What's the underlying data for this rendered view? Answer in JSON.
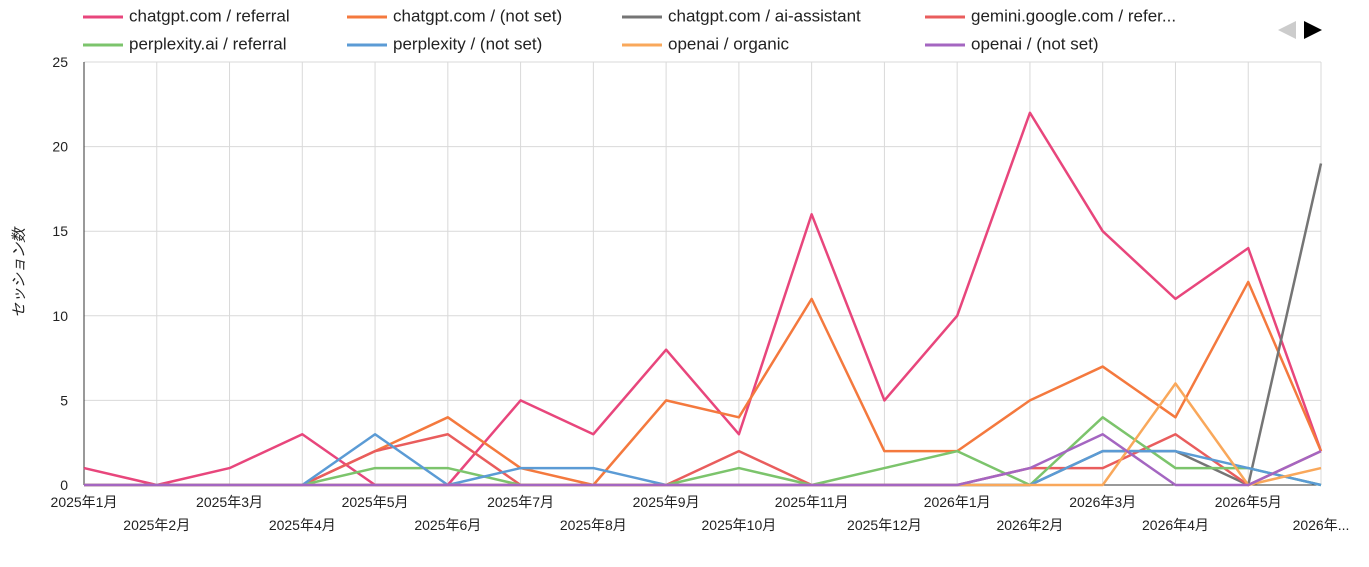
{
  "chart_data": {
    "type": "line",
    "y_label": "セッション数",
    "categories": [
      "2025年1月",
      "2025年2月",
      "2025年3月",
      "2025年4月",
      "2025年5月",
      "2025年6月",
      "2025年7月",
      "2025年8月",
      "2025年9月",
      "2025年10月",
      "2025年11月",
      "2025年12月",
      "2026年1月",
      "2026年2月",
      "2026年3月",
      "2026年4月",
      "2026年5月",
      "2026年..."
    ],
    "ylim": [
      0,
      25
    ],
    "yticks": [
      0,
      5,
      10,
      15,
      20,
      25
    ],
    "grid": true,
    "series": [
      {
        "name": "chatgpt.com / referral",
        "color": "#e8467c",
        "values": [
          1,
          0,
          1,
          3,
          0,
          0,
          5,
          3,
          8,
          3,
          16,
          5,
          10,
          22,
          15,
          11,
          14,
          2
        ]
      },
      {
        "name": "chatgpt.com / (not set)",
        "color": "#f4793e",
        "values": [
          0,
          0,
          0,
          0,
          2,
          4,
          1,
          0,
          5,
          4,
          11,
          2,
          2,
          5,
          7,
          4,
          12,
          2
        ]
      },
      {
        "name": "chatgpt.com / ai-assistant",
        "color": "#757575",
        "values": [
          0,
          0,
          0,
          0,
          0,
          0,
          0,
          0,
          0,
          0,
          0,
          0,
          0,
          0,
          2,
          2,
          0,
          19
        ]
      },
      {
        "name": "gemini.google.com / refer...",
        "color": "#e95d5d",
        "values": [
          0,
          0,
          0,
          0,
          2,
          3,
          0,
          0,
          0,
          2,
          0,
          0,
          0,
          1,
          1,
          3,
          0,
          2
        ]
      },
      {
        "name": "perplexity.ai / referral",
        "color": "#7cc46c",
        "values": [
          0,
          0,
          0,
          0,
          1,
          1,
          0,
          0,
          0,
          1,
          0,
          1,
          2,
          0,
          4,
          1,
          1,
          0
        ]
      },
      {
        "name": "perplexity / (not set)",
        "color": "#5b9bd5",
        "values": [
          0,
          0,
          0,
          0,
          3,
          0,
          1,
          1,
          0,
          0,
          0,
          0,
          0,
          0,
          2,
          2,
          1,
          0
        ]
      },
      {
        "name": "openai / organic",
        "color": "#f9a85b",
        "values": [
          0,
          0,
          0,
          0,
          0,
          0,
          0,
          0,
          0,
          0,
          0,
          0,
          0,
          0,
          0,
          6,
          0,
          1
        ]
      },
      {
        "name": "openai / (not set)",
        "color": "#a466c1",
        "values": [
          0,
          0,
          0,
          0,
          0,
          0,
          0,
          0,
          0,
          0,
          0,
          0,
          0,
          1,
          3,
          0,
          0,
          2
        ]
      }
    ]
  }
}
